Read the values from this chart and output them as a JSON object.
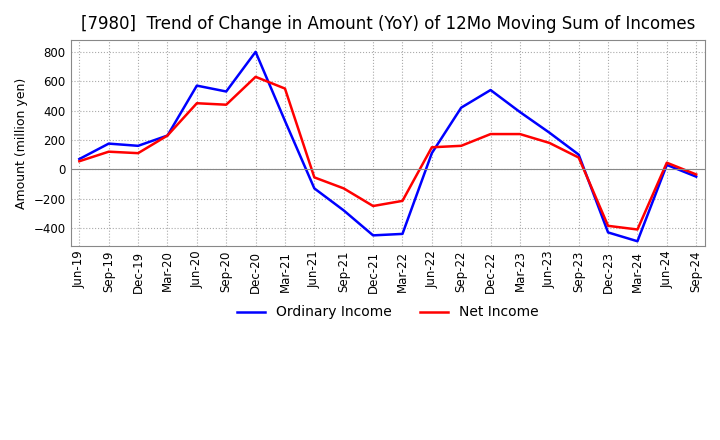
{
  "title": "[7980]  Trend of Change in Amount (YoY) of 12Mo Moving Sum of Incomes",
  "ylabel": "Amount (million yen)",
  "ylim": [
    -520,
    880
  ],
  "yticks": [
    -400,
    -200,
    0,
    200,
    400,
    600,
    800
  ],
  "x_labels": [
    "Jun-19",
    "Sep-19",
    "Dec-19",
    "Mar-20",
    "Jun-20",
    "Sep-20",
    "Dec-20",
    "Mar-21",
    "Jun-21",
    "Sep-21",
    "Dec-21",
    "Mar-22",
    "Jun-22",
    "Sep-22",
    "Dec-22",
    "Mar-23",
    "Jun-23",
    "Sep-23",
    "Dec-23",
    "Mar-24",
    "Jun-24",
    "Sep-24"
  ],
  "ordinary_income": [
    70,
    175,
    160,
    230,
    570,
    530,
    800,
    330,
    -130,
    -280,
    -450,
    -440,
    110,
    420,
    540,
    390,
    250,
    100,
    -430,
    -490,
    30,
    -50
  ],
  "net_income": [
    55,
    120,
    110,
    230,
    450,
    440,
    630,
    550,
    -55,
    -130,
    -250,
    -215,
    150,
    160,
    240,
    240,
    180,
    80,
    -385,
    -410,
    45,
    -35
  ],
  "ordinary_color": "#0000ff",
  "net_color": "#ff0000",
  "grid_color": "#aaaaaa",
  "background_color": "#ffffff",
  "title_fontsize": 12,
  "axis_fontsize": 9,
  "tick_fontsize": 8.5,
  "legend_fontsize": 10
}
